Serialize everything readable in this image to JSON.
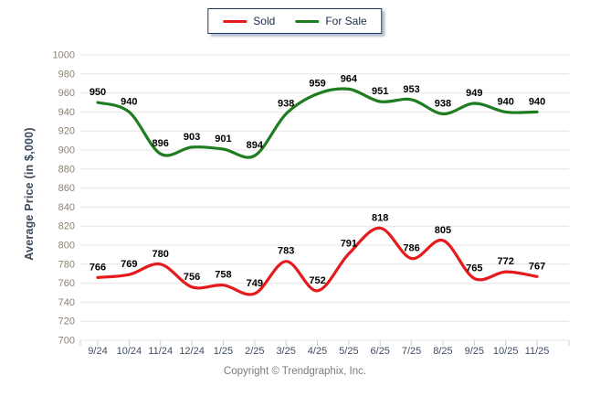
{
  "legend": {
    "items": [
      {
        "label": "Sold",
        "color": "#e41a1c"
      },
      {
        "label": "For Sale",
        "color": "#1e7d20"
      }
    ]
  },
  "chart_data": {
    "type": "line",
    "categories": [
      "9/24",
      "10/24",
      "11/24",
      "12/24",
      "1/25",
      "2/25",
      "3/25",
      "4/25",
      "5/25",
      "6/25",
      "7/25",
      "8/25",
      "9/25",
      "10/25",
      "11/25"
    ],
    "series": [
      {
        "name": "Sold",
        "color": "#e41a1c",
        "values": [
          766,
          769,
          780,
          756,
          758,
          749,
          783,
          752,
          791,
          818,
          786,
          805,
          765,
          772,
          767
        ]
      },
      {
        "name": "For Sale",
        "color": "#1e7d20",
        "values": [
          950,
          940,
          896,
          903,
          901,
          894,
          938,
          959,
          964,
          951,
          953,
          938,
          949,
          940,
          940
        ]
      }
    ],
    "title": "",
    "xlabel": "",
    "ylabel": "Average Price (in $,000)",
    "ylim": [
      700,
      1000
    ],
    "ytick_step": 20,
    "grid": true,
    "smooth": true,
    "data_labels": true,
    "legend_position": "top",
    "colors": {
      "grid": "#e6e6e6",
      "tick": "#c9ced6",
      "y_tick_label": "#8c8274",
      "x_tick_label": "#3f4d63",
      "data_label": "#000000"
    }
  },
  "footer": {
    "copyright": "Copyright © Trendgraphix, Inc."
  }
}
